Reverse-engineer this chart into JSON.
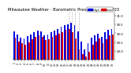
{
  "title": "Milwaukee Weather - Barometric Pressure - Nov 2003",
  "title_fontsize": 3.8,
  "high_color": "#0000dd",
  "low_color": "#dd0000",
  "background_color": "#ffffff",
  "ylim": [
    28.5,
    31.2
  ],
  "yticks": [
    29.0,
    29.5,
    30.0,
    30.5,
    31.0
  ],
  "ytick_labels": [
    "29.0",
    "29.5",
    "30.0",
    "30.5",
    "31.0"
  ],
  "legend_high": "High",
  "legend_low": "Low",
  "dotted_line_indices": [
    16,
    17,
    18,
    19
  ],
  "days": [
    "1",
    "2",
    "3",
    "4",
    "5",
    "6",
    "7",
    "8",
    "9",
    "10",
    "11",
    "12",
    "13",
    "14",
    "15",
    "16",
    "17",
    "18",
    "19",
    "20",
    "21",
    "22",
    "23",
    "24",
    "25",
    "26",
    "27",
    "28",
    "29",
    "30"
  ],
  "highs": [
    30.1,
    29.95,
    29.75,
    29.7,
    29.85,
    29.95,
    30.05,
    30.15,
    30.1,
    29.9,
    29.95,
    30.05,
    30.15,
    30.25,
    30.38,
    30.48,
    30.52,
    30.58,
    30.45,
    30.1,
    29.55,
    29.1,
    29.45,
    29.75,
    29.88,
    29.98,
    29.8,
    30.05,
    30.18,
    30.22
  ],
  "lows": [
    29.75,
    29.55,
    29.45,
    29.35,
    29.5,
    29.65,
    29.8,
    29.88,
    29.8,
    29.62,
    29.65,
    29.78,
    29.88,
    29.98,
    30.08,
    30.18,
    30.22,
    30.05,
    29.72,
    29.1,
    28.82,
    28.68,
    28.95,
    29.35,
    29.55,
    29.72,
    29.45,
    29.65,
    29.88,
    29.92
  ]
}
